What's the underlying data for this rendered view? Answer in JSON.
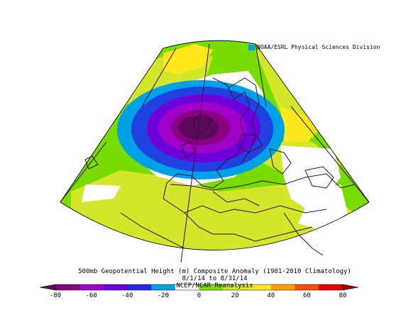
{
  "credit": "NOAA/ESRL Physical Sciences Division",
  "title": {
    "line1": "500mb Geopotential Height (m) Composite Anomaly (1981-2010 Climatology)",
    "line2": "8/1/14  to 8/31/14",
    "line3": "NCEP/NCAR Reanalysis"
  },
  "colorbar": {
    "ticks": [
      "-80",
      "-60",
      "-40",
      "-20",
      "0",
      "20",
      "40",
      "60",
      "80"
    ],
    "colors": [
      "#8a0080",
      "#a100c8",
      "#6e00dc",
      "#2828e6",
      "#00a0e6",
      "#ffffff",
      "#7fe000",
      "#d2e62a",
      "#ffe81e",
      "#ffa000",
      "#ff5000",
      "#e60000"
    ]
  },
  "map": {
    "projection": "polar-stereographic-sector",
    "region": "North Atlantic and Europe",
    "anomaly_palette": {
      "strong_negative": "#5a0a5a",
      "negative": "#8c28c8",
      "weak_negative": "#2040e0",
      "near_zero_negative": "#00a0e6",
      "neutral": "#ffffff",
      "weak_positive": "#78dc00",
      "positive": "#d2e62a",
      "strong_positive": "#ffe81e"
    }
  }
}
